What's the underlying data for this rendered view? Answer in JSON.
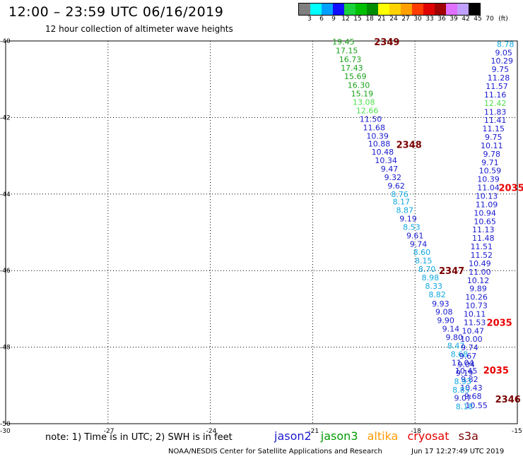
{
  "title": "12:00 – 23:59 UTC 06/16/2019",
  "subtitle": "12 hour collection of altimeter wave heights",
  "colorbar": {
    "unit": "(ft)",
    "ticks": [
      "3",
      "6",
      "9",
      "12",
      "15",
      "18",
      "21",
      "24",
      "27",
      "30",
      "33",
      "36",
      "39",
      "42",
      "45",
      "70"
    ],
    "colors": [
      "#7f7f7f",
      "#00ffff",
      "#00a0ff",
      "#1010ff",
      "#19d23c",
      "#00c000",
      "#008c00",
      "#ffff00",
      "#ffd200",
      "#ffa000",
      "#ff3c00",
      "#e00000",
      "#a00000",
      "#e070ff",
      "#c0a0ff",
      "#000000"
    ]
  },
  "axes": {
    "lon_ticks": [
      "-30",
      "-27",
      "-24",
      "-21",
      "-18",
      "-15"
    ],
    "lat_ticks": [
      "-40",
      "-42",
      "-44",
      "-46",
      "-48",
      "-50"
    ],
    "lon_range": [
      -30,
      -15
    ],
    "lat_range": [
      -50,
      -40
    ]
  },
  "satellite_colors": {
    "jason2": "#1a1ad0",
    "jason3": "#009a00",
    "altika": "#ff9a00",
    "cryosat": "#e80000",
    "s3a": "#7a0000",
    "light_green": "#50e050",
    "light_blue": "#10a8e0"
  },
  "tracks": [
    {
      "points": [
        {
          "lon": -20.1,
          "lat": -40.02,
          "v": "19.45",
          "c": "#1aa31a"
        },
        {
          "lon": -20.0,
          "lat": -40.25,
          "v": "17.15",
          "c": "#1aa31a"
        },
        {
          "lon": -19.9,
          "lat": -40.48,
          "v": "16.73",
          "c": "#1aa31a"
        },
        {
          "lon": -19.85,
          "lat": -40.7,
          "v": "17.43",
          "c": "#1aa31a"
        },
        {
          "lon": -19.75,
          "lat": -40.92,
          "v": "15.69",
          "c": "#1aa31a"
        },
        {
          "lon": -19.65,
          "lat": -41.15,
          "v": "16.30",
          "c": "#1aa31a"
        },
        {
          "lon": -19.55,
          "lat": -41.37,
          "v": "15.19",
          "c": "#1aa31a"
        },
        {
          "lon": -19.5,
          "lat": -41.6,
          "v": "13.08",
          "c": "#50e050"
        },
        {
          "lon": -19.4,
          "lat": -41.82,
          "v": "12.66",
          "c": "#50e050"
        },
        {
          "lon": -19.3,
          "lat": -42.04,
          "v": "11.50",
          "c": "#1a1ad0"
        },
        {
          "lon": -19.2,
          "lat": -42.26,
          "v": "11.68",
          "c": "#1a1ad0"
        },
        {
          "lon": -19.1,
          "lat": -42.48,
          "v": "10.39",
          "c": "#1a1ad0"
        },
        {
          "lon": -19.05,
          "lat": -42.68,
          "v": "10.88",
          "c": "#1a1ad0"
        },
        {
          "lon": -18.95,
          "lat": -42.9,
          "v": "10.48",
          "c": "#1a1ad0"
        },
        {
          "lon": -18.85,
          "lat": -43.12,
          "v": "10.34",
          "c": "#1a1ad0"
        },
        {
          "lon": -18.75,
          "lat": -43.34,
          "v": "9.47",
          "c": "#1a1ad0"
        },
        {
          "lon": -18.65,
          "lat": -43.56,
          "v": "9.32",
          "c": "#1a1ad0"
        },
        {
          "lon": -18.55,
          "lat": -43.78,
          "v": "9.62",
          "c": "#1a1ad0"
        },
        {
          "lon": -18.45,
          "lat": -44.0,
          "v": "8.76",
          "c": "#10a8e0"
        },
        {
          "lon": -18.4,
          "lat": -44.2,
          "v": "8.17",
          "c": "#10a8e0"
        },
        {
          "lon": -18.3,
          "lat": -44.42,
          "v": "8.87",
          "c": "#10a8e0"
        },
        {
          "lon": -18.2,
          "lat": -44.64,
          "v": "9.19",
          "c": "#1a1ad0"
        },
        {
          "lon": -18.1,
          "lat": -44.86,
          "v": "8.53",
          "c": "#10a8e0"
        },
        {
          "lon": -18.0,
          "lat": -45.08,
          "v": "9.61",
          "c": "#1a1ad0"
        },
        {
          "lon": -17.9,
          "lat": -45.3,
          "v": "9.74",
          "c": "#1a1ad0"
        },
        {
          "lon": -17.8,
          "lat": -45.52,
          "v": "8.60",
          "c": "#10a8e0"
        },
        {
          "lon": -17.75,
          "lat": -45.74,
          "v": "8.15",
          "c": "#10a8e0"
        },
        {
          "lon": -17.65,
          "lat": -45.96,
          "v": "8.70",
          "c": "#10a8e0"
        },
        {
          "lon": -17.55,
          "lat": -46.18,
          "v": "8.98",
          "c": "#10a8e0"
        },
        {
          "lon": -17.45,
          "lat": -46.4,
          "v": "8.33",
          "c": "#10a8e0"
        },
        {
          "lon": -17.35,
          "lat": -46.62,
          "v": "8.82",
          "c": "#10a8e0"
        },
        {
          "lon": -17.25,
          "lat": -46.86,
          "v": "9.93",
          "c": "#1a1ad0"
        },
        {
          "lon": -17.15,
          "lat": -47.08,
          "v": "9.08",
          "c": "#1a1ad0"
        },
        {
          "lon": -17.1,
          "lat": -47.3,
          "v": "9.90",
          "c": "#1a1ad0"
        },
        {
          "lon": -16.95,
          "lat": -47.52,
          "v": "9.14",
          "c": "#1a1ad0"
        },
        {
          "lon": -16.85,
          "lat": -47.74,
          "v": "9.80",
          "c": "#1a1ad0"
        },
        {
          "lon": -16.8,
          "lat": -47.96,
          "v": "8.47",
          "c": "#10a8e0"
        },
        {
          "lon": -16.7,
          "lat": -48.18,
          "v": "8.68",
          "c": "#10a8e0"
        },
        {
          "lon": -16.6,
          "lat": -48.4,
          "v": "11.04",
          "c": "#1a1ad0"
        },
        {
          "lon": -16.5,
          "lat": -48.62,
          "v": "10.45",
          "c": "#1a1ad0"
        },
        {
          "lon": -16.4,
          "lat": -48.84,
          "v": "9.82",
          "c": "#1a1ad0"
        },
        {
          "lon": -16.35,
          "lat": -49.06,
          "v": "10.43",
          "c": "#1a1ad0"
        },
        {
          "lon": -16.3,
          "lat": -49.28,
          "v": "9.68",
          "c": "#1a1ad0"
        },
        {
          "lon": -16.2,
          "lat": -49.52,
          "v": "10.55",
          "c": "#1a1ad0"
        }
      ]
    },
    {
      "points": [
        {
          "lon": -15.35,
          "lat": -40.08,
          "v": "8.78",
          "c": "#10a8e0"
        },
        {
          "lon": -15.4,
          "lat": -40.3,
          "v": "9.05",
          "c": "#1a1ad0"
        },
        {
          "lon": -15.45,
          "lat": -40.52,
          "v": "10.29",
          "c": "#1a1ad0"
        },
        {
          "lon": -15.5,
          "lat": -40.74,
          "v": "9.75",
          "c": "#1a1ad0"
        },
        {
          "lon": -15.55,
          "lat": -40.96,
          "v": "11.28",
          "c": "#1a1ad0"
        },
        {
          "lon": -15.6,
          "lat": -41.18,
          "v": "11.57",
          "c": "#1a1ad0"
        },
        {
          "lon": -15.65,
          "lat": -41.4,
          "v": "11.16",
          "c": "#1a1ad0"
        },
        {
          "lon": -15.65,
          "lat": -41.62,
          "v": "12.42",
          "c": "#50e050"
        },
        {
          "lon": -15.65,
          "lat": -41.85,
          "v": "11.83",
          "c": "#1a1ad0"
        },
        {
          "lon": -15.65,
          "lat": -42.07,
          "v": "11.41",
          "c": "#1a1ad0"
        },
        {
          "lon": -15.7,
          "lat": -42.29,
          "v": "11.15",
          "c": "#1a1ad0"
        },
        {
          "lon": -15.7,
          "lat": -42.51,
          "v": "9.75",
          "c": "#1a1ad0"
        },
        {
          "lon": -15.75,
          "lat": -42.73,
          "v": "10.11",
          "c": "#1a1ad0"
        },
        {
          "lon": -15.75,
          "lat": -42.95,
          "v": "9.78",
          "c": "#1a1ad0"
        },
        {
          "lon": -15.8,
          "lat": -43.17,
          "v": "9.71",
          "c": "#1a1ad0"
        },
        {
          "lon": -15.8,
          "lat": -43.39,
          "v": "10.59",
          "c": "#1a1ad0"
        },
        {
          "lon": -15.85,
          "lat": -43.61,
          "v": "10.39",
          "c": "#1a1ad0"
        },
        {
          "lon": -15.85,
          "lat": -43.83,
          "v": "11.04",
          "c": "#1a1ad0"
        },
        {
          "lon": -15.9,
          "lat": -44.05,
          "v": "10.13",
          "c": "#1a1ad0"
        },
        {
          "lon": -15.9,
          "lat": -44.27,
          "v": "11.09",
          "c": "#1a1ad0"
        },
        {
          "lon": -15.95,
          "lat": -44.49,
          "v": "10.94",
          "c": "#1a1ad0"
        },
        {
          "lon": -15.95,
          "lat": -44.71,
          "v": "10.65",
          "c": "#1a1ad0"
        },
        {
          "lon": -16.0,
          "lat": -44.93,
          "v": "11.13",
          "c": "#1a1ad0"
        },
        {
          "lon": -16.0,
          "lat": -45.15,
          "v": "11.48",
          "c": "#1a1ad0"
        },
        {
          "lon": -16.05,
          "lat": -45.37,
          "v": "11.51",
          "c": "#1a1ad0"
        },
        {
          "lon": -16.05,
          "lat": -45.59,
          "v": "11.52",
          "c": "#1a1ad0"
        },
        {
          "lon": -16.1,
          "lat": -45.81,
          "v": "10.49",
          "c": "#1a1ad0"
        },
        {
          "lon": -16.1,
          "lat": -46.03,
          "v": "11.00",
          "c": "#1a1ad0"
        },
        {
          "lon": -16.15,
          "lat": -46.25,
          "v": "10.12",
          "c": "#1a1ad0"
        },
        {
          "lon": -16.15,
          "lat": -46.47,
          "v": "9.89",
          "c": "#1a1ad0"
        },
        {
          "lon": -16.2,
          "lat": -46.69,
          "v": "10.26",
          "c": "#1a1ad0"
        },
        {
          "lon": -16.2,
          "lat": -46.91,
          "v": "10.73",
          "c": "#1a1ad0"
        },
        {
          "lon": -16.25,
          "lat": -47.13,
          "v": "10.11",
          "c": "#1a1ad0"
        },
        {
          "lon": -16.25,
          "lat": -47.35,
          "v": "11.53",
          "c": "#1a1ad0"
        },
        {
          "lon": -16.3,
          "lat": -47.57,
          "v": "10.47",
          "c": "#1a1ad0"
        },
        {
          "lon": -16.35,
          "lat": -47.79,
          "v": "10.00",
          "c": "#1a1ad0"
        },
        {
          "lon": -16.4,
          "lat": -48.01,
          "v": "9.74",
          "c": "#1a1ad0"
        },
        {
          "lon": -16.45,
          "lat": -48.23,
          "v": "9.67",
          "c": "#1a1ad0"
        },
        {
          "lon": -16.5,
          "lat": -48.45,
          "v": "9.04",
          "c": "#1a1ad0"
        },
        {
          "lon": -16.55,
          "lat": -48.67,
          "v": "9.19",
          "c": "#1a1ad0"
        },
        {
          "lon": -16.6,
          "lat": -48.89,
          "v": "8.93",
          "c": "#10a8e0"
        },
        {
          "lon": -16.65,
          "lat": -49.11,
          "v": "8.85",
          "c": "#10a8e0"
        },
        {
          "lon": -16.6,
          "lat": -49.33,
          "v": "9.07",
          "c": "#1a1ad0"
        },
        {
          "lon": -16.55,
          "lat": -49.55,
          "v": "8.18",
          "c": "#10a8e0"
        }
      ]
    }
  ],
  "time_labels": [
    {
      "text": "2349",
      "lon": -19.2,
      "lat": -40.02,
      "c": "#7a0000"
    },
    {
      "text": "2348",
      "lon": -18.55,
      "lat": -42.7,
      "c": "#7a0000"
    },
    {
      "text": "2347",
      "lon": -17.3,
      "lat": -46.0,
      "c": "#7a0000"
    },
    {
      "text": "2346",
      "lon": -15.65,
      "lat": -49.35,
      "c": "#7a0000"
    },
    {
      "text": "2035",
      "lon": -15.55,
      "lat": -43.83,
      "c": "#e80000"
    },
    {
      "text": "2035",
      "lon": -15.9,
      "lat": -47.35,
      "c": "#e80000"
    },
    {
      "text": "2035",
      "lon": -16.0,
      "lat": -48.6,
      "c": "#e80000"
    }
  ],
  "note": "note:  1) Time is in UTC;  2) SWH is in feet",
  "legend": {
    "jason2": "jason2",
    "jason3": "jason3",
    "altika": "altika",
    "cryosat": "cryosat",
    "s3a": "s3a"
  },
  "credit": "NOAA/NESDIS Center for Satellite Applications and Research",
  "timestamp": "Jun 17 12:27:49 UTC 2019"
}
